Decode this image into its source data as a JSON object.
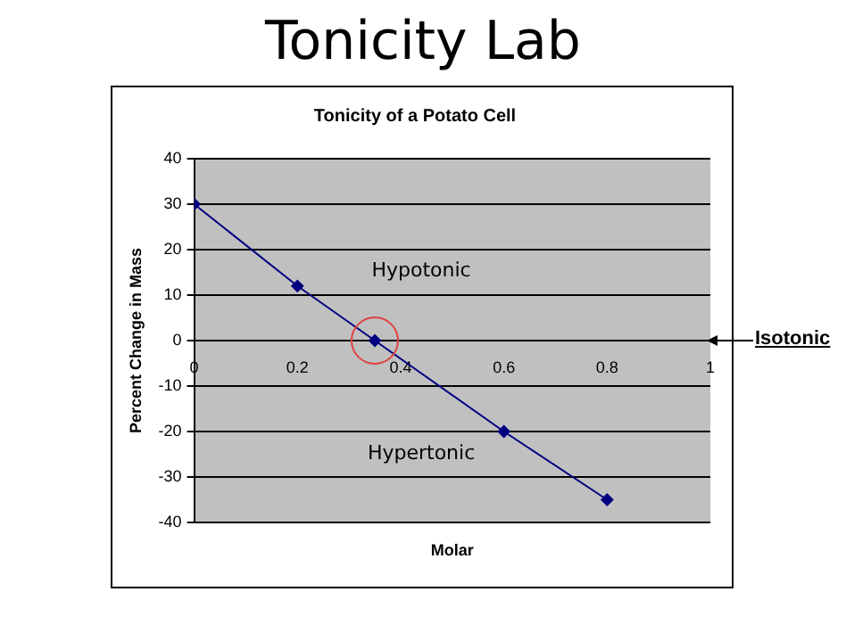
{
  "chart_data": {
    "type": "line",
    "title": "Tonicity Lab",
    "subtitle": "Tonicity of a Potato Cell",
    "xlabel": "Molar",
    "ylabel": "Percent Change in Mass",
    "x": [
      0,
      0.2,
      0.35,
      0.6,
      0.8
    ],
    "series": [
      {
        "color": "#000080",
        "values": [
          30,
          12,
          0,
          -20,
          -35
        ]
      }
    ],
    "xlim": [
      0,
      1
    ],
    "xticks": [
      0,
      0.2,
      0.4,
      0.6,
      0.8,
      1
    ],
    "ylim": [
      -40,
      40
    ],
    "yticks": [
      -40,
      -30,
      -20,
      -10,
      0,
      10,
      20,
      30,
      40
    ],
    "grid": "y",
    "legend": false,
    "marker": "diamond",
    "line_style": "solid",
    "annotations": [
      "Hypotonic",
      "Hypertonic",
      "Isotonic"
    ]
  }
}
